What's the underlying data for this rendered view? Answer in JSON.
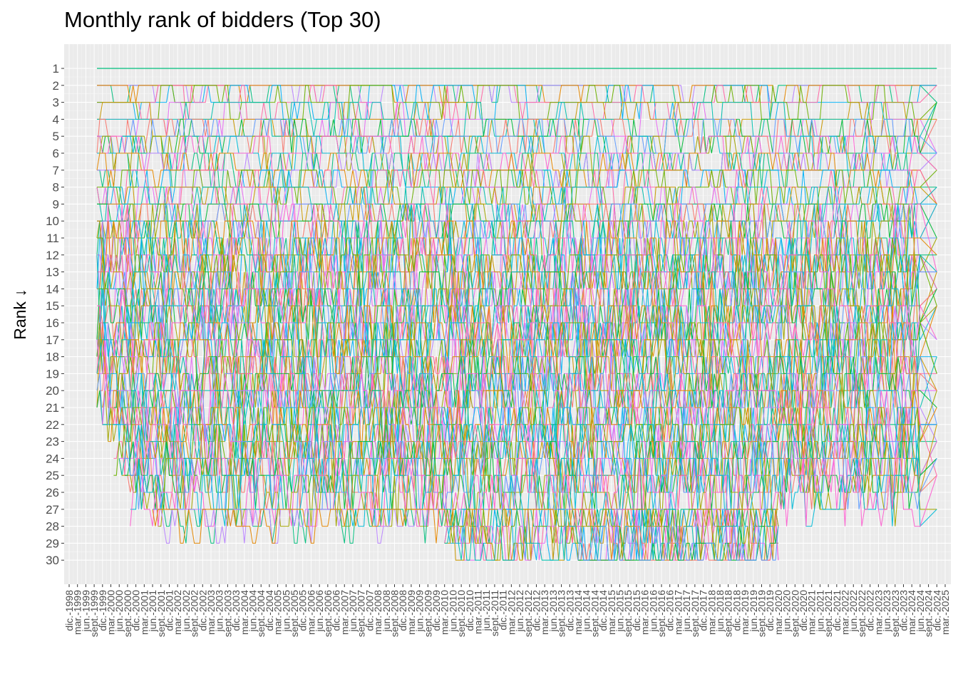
{
  "chart_data": {
    "type": "line",
    "title": "Monthly rank of bidders (Top 30)",
    "ylabel": "Rank ↓",
    "xlabel": "",
    "y_reversed": true,
    "ylim": [
      1,
      30
    ],
    "y_ticks": [
      1,
      2,
      3,
      4,
      5,
      6,
      7,
      8,
      9,
      10,
      11,
      12,
      13,
      14,
      15,
      16,
      17,
      18,
      19,
      20,
      21,
      22,
      23,
      24,
      25,
      26,
      27,
      28,
      29,
      30
    ],
    "x_range": [
      "1998-12",
      "2025-03"
    ],
    "x_tick_format": "mmm.-yyyy (Spanish abbreviations: dic., mar., jun., sept.), quarterly",
    "grid": true,
    "legend": "none",
    "series_palette": [
      "#F8766D",
      "#E58700",
      "#C99800",
      "#A3A500",
      "#6BB100",
      "#00BA38",
      "#00BF7D",
      "#00C0AF",
      "#00BCD8",
      "#00B0F6",
      "#619CFF",
      "#B983FF",
      "#E76BF3",
      "#FD61D1",
      "#FF67A4"
    ],
    "series_note": "30 bidder ranks tracked monthly from 1999 to 2024; lines are illustrative, approximating the dense rank-swap pattern shown",
    "series": [
      {
        "start": "1999-10",
        "end": "2024-12",
        "ranks_start": [
          1
        ],
        "ranks_end": [
          1
        ],
        "color": "#00BF7D"
      }
    ]
  }
}
